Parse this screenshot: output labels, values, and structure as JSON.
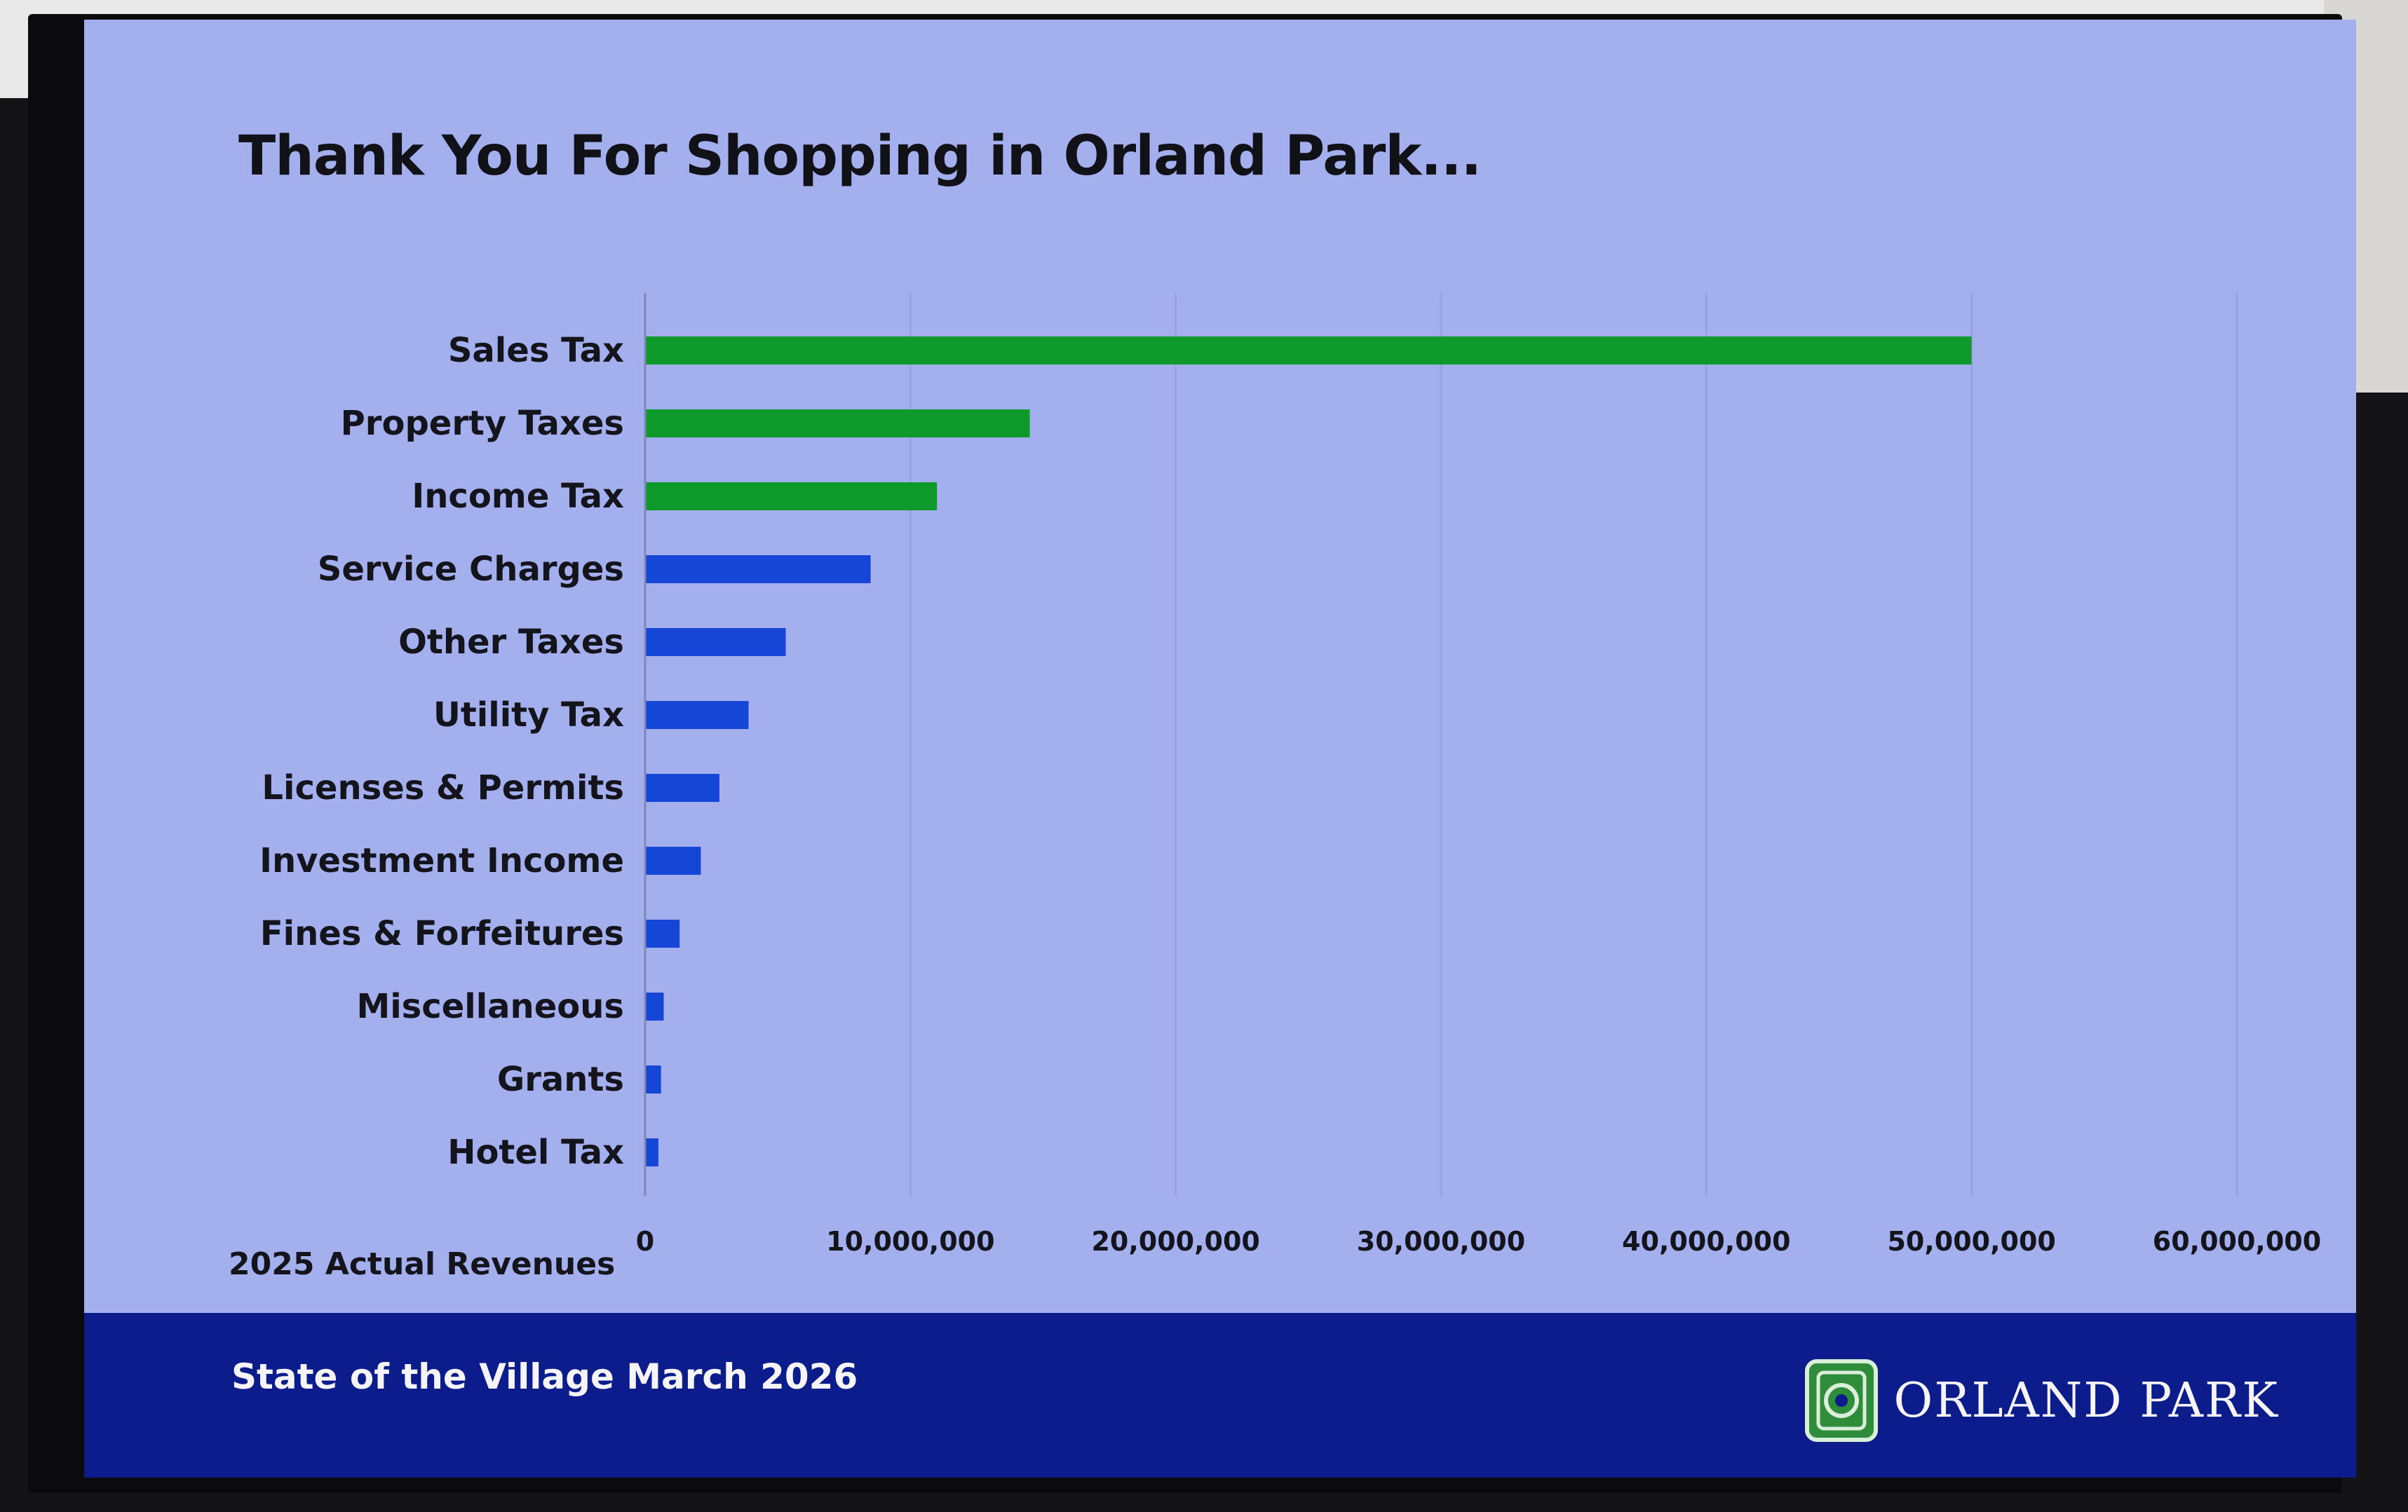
{
  "slide": {
    "title": "Thank You For Shopping in Orland Park...",
    "subtitle": "2025 Actual Revenues",
    "footer_text": "State of the Village March 2026",
    "brand_name": "ORLAND PARK",
    "brand_icon": "orland-park-logo-icon"
  },
  "colors": {
    "slide_bg": "#a4afee",
    "footer_bg": "#0c1c8a",
    "highlight_bar": "#0e9a2a",
    "standard_bar": "#1546d6",
    "logo_green": "#2f8c3a"
  },
  "chart_data": {
    "type": "bar",
    "orientation": "horizontal",
    "title": "Thank You For Shopping in Orland Park...",
    "categories": [
      "Sales Tax",
      "Property Taxes",
      "Income Tax",
      "Service Charges",
      "Other Taxes",
      "Utility Tax",
      "Licenses & Permits",
      "Investment Income",
      "Fines & Forfeitures",
      "Miscellaneous",
      "Grants",
      "Hotel Tax"
    ],
    "values": [
      50000000,
      14500000,
      11000000,
      8500000,
      5300000,
      3900000,
      2800000,
      2100000,
      1300000,
      700000,
      600000,
      500000
    ],
    "highlighted": [
      true,
      true,
      true,
      false,
      false,
      false,
      false,
      false,
      false,
      false,
      false,
      false
    ],
    "xlim": [
      0,
      60000000
    ],
    "xticks": [
      0,
      10000000,
      20000000,
      30000000,
      40000000,
      50000000,
      60000000
    ],
    "xtick_labels": [
      "0",
      "10,000,000",
      "20,000,000",
      "30,000,000",
      "40,000,000",
      "50,000,000",
      "60,000,000"
    ],
    "xlabel": "",
    "ylabel": "",
    "grid": "vertical",
    "legend": "none"
  }
}
